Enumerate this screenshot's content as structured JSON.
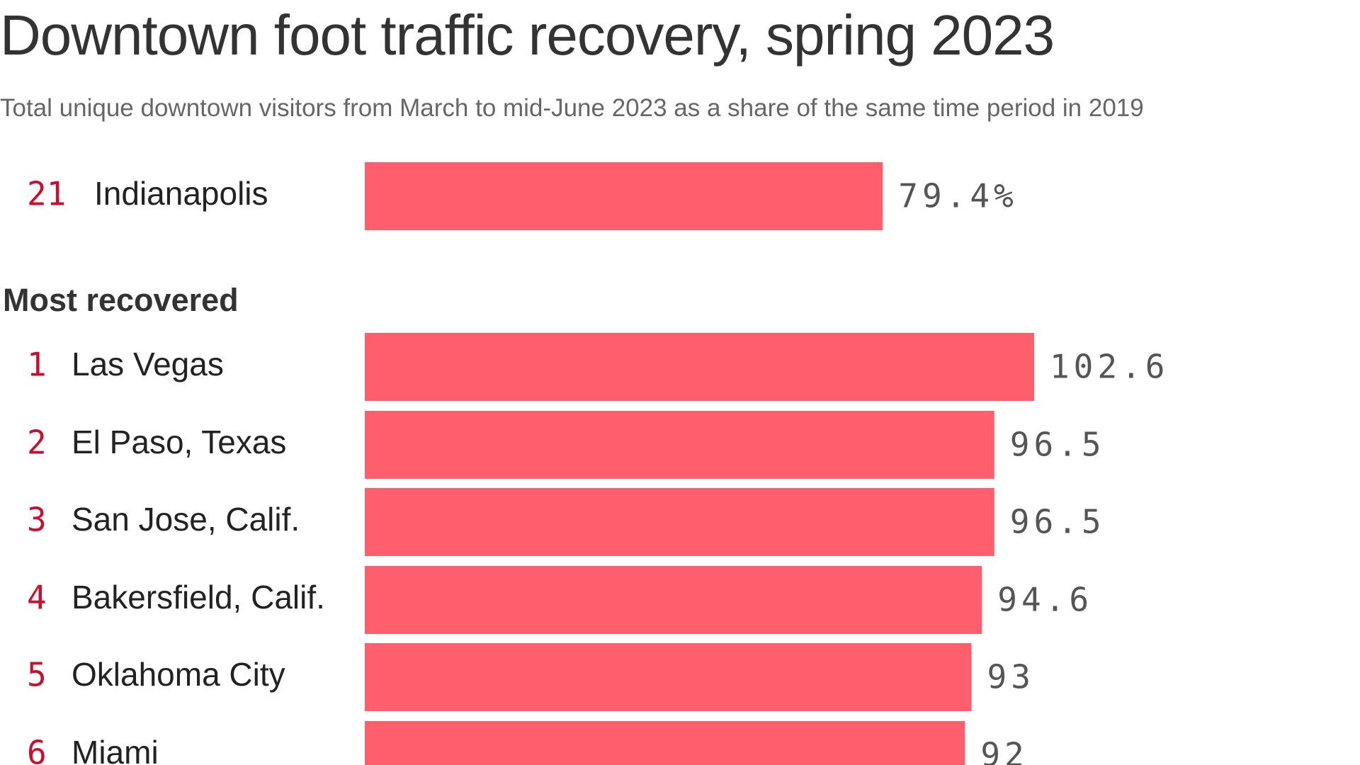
{
  "chart_data": {
    "type": "bar",
    "title": "Downtown foot traffic recovery, spring 2023",
    "subtitle": "Total unique downtown visitors from March to mid-June 2023 as a share of the same time period in 2019",
    "bar_color": "#ff5f6d",
    "rank_color": "#c8102e",
    "highlight": {
      "rank": "21",
      "category": "Indianapolis",
      "value": 79.4,
      "value_label": "79.4%"
    },
    "section_label": "Most recovered",
    "ranks": [
      "1",
      "2",
      "3",
      "4",
      "5",
      "6"
    ],
    "categories": [
      "Las Vegas",
      "El Paso, Texas",
      "San Jose, Calif.",
      "Bakersfield, Calif.",
      "Oklahoma City",
      "Miami"
    ],
    "values": [
      102.6,
      96.5,
      96.5,
      94.6,
      93,
      92
    ],
    "value_labels": [
      "102.6",
      "96.5",
      "96.5",
      "94.6",
      "93",
      "92"
    ]
  }
}
